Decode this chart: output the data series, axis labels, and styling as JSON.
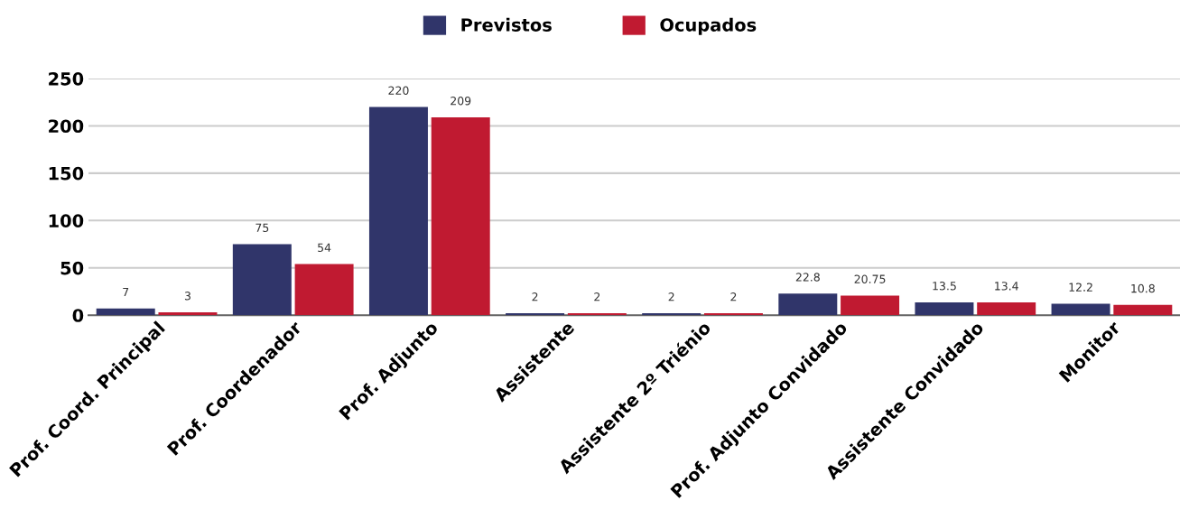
{
  "chart_data": {
    "type": "bar",
    "categories": [
      "Prof. Coord. Principal",
      "Prof. Coordenador",
      "Prof. Adjunto",
      "Assistente",
      "Assistente 2º Triénio",
      "Prof. Adjunto Convidado",
      "Assistente Convidado",
      "Monitor"
    ],
    "series": [
      {
        "name": "Previstos",
        "color": "#30356a",
        "values": [
          7,
          75,
          220,
          2,
          2,
          22.8,
          13.5,
          12.2
        ]
      },
      {
        "name": "Ocupados",
        "color": "#c01a31",
        "values": [
          3,
          54,
          209,
          2,
          2,
          20.75,
          13.4,
          10.8
        ]
      }
    ],
    "ylim": [
      0,
      250
    ],
    "yticks": [
      0,
      50,
      100,
      150,
      200,
      250
    ],
    "grid": "y",
    "legend": "top",
    "data_labels": true
  }
}
